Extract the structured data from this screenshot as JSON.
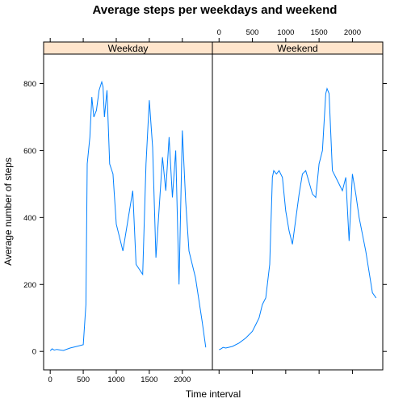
{
  "chart_data": {
    "type": "line",
    "title": "Average steps per weekdays and weekend",
    "xlabel": "Time interval",
    "ylabel": "Average number of steps",
    "xlim": [
      -100,
      2455
    ],
    "ylim": [
      -55,
      888
    ],
    "x_ticks": [
      0,
      500,
      1000,
      1500,
      2000
    ],
    "y_ticks": [
      0,
      200,
      400,
      600,
      800
    ],
    "colors": {
      "line": "#0080ff",
      "strip": "#ffe5cc",
      "frame": "#000000"
    },
    "panels": [
      {
        "label": "Weekday",
        "series": [
          {
            "x": [
              0,
              30,
              60,
              100,
              200,
              300,
              400,
              500,
              540,
              560,
              600,
              630,
              660,
              700,
              740,
              780,
              800,
              820,
              860,
              900,
              950,
              1000,
              1100,
              1200,
              1250,
              1300,
              1400,
              1450,
              1500,
              1550,
              1600,
              1700,
              1750,
              1800,
              1850,
              1900,
              1950,
              2000,
              2050,
              2100,
              2200,
              2300,
              2355
            ],
            "y": [
              2,
              8,
              4,
              6,
              3,
              10,
              15,
              20,
              140,
              560,
              640,
              760,
              700,
              720,
              780,
              805,
              790,
              700,
              780,
              560,
              530,
              380,
              300,
              420,
              480,
              260,
              230,
              560,
              750,
              610,
              280,
              580,
              480,
              640,
              460,
              600,
              200,
              660,
              450,
              300,
              220,
              90,
              12
            ]
          }
        ]
      },
      {
        "label": "Weekend",
        "series": [
          {
            "x": [
              0,
              30,
              60,
              100,
              200,
              300,
              400,
              500,
              550,
              600,
              650,
              700,
              760,
              800,
              820,
              860,
              900,
              950,
              1000,
              1050,
              1100,
              1200,
              1250,
              1300,
              1400,
              1450,
              1500,
              1550,
              1600,
              1620,
              1650,
              1700,
              1750,
              1800,
              1850,
              1900,
              1950,
              2000,
              2050,
              2100,
              2200,
              2300,
              2355
            ],
            "y": [
              5,
              8,
              12,
              10,
              15,
              25,
              40,
              60,
              80,
              100,
              140,
              160,
              260,
              520,
              540,
              530,
              540,
              520,
              420,
              360,
              320,
              470,
              530,
              540,
              470,
              460,
              560,
              600,
              770,
              785,
              770,
              540,
              520,
              500,
              480,
              520,
              330,
              530,
              470,
              400,
              300,
              175,
              160
            ]
          }
        ]
      }
    ]
  }
}
